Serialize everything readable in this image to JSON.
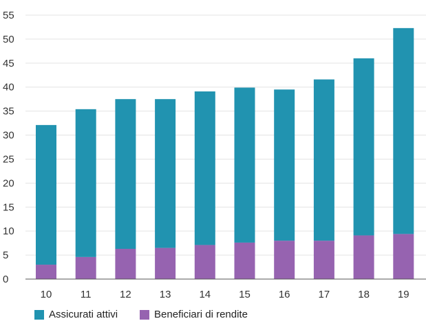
{
  "chart_data": {
    "type": "bar",
    "stacked": true,
    "categories": [
      "10",
      "11",
      "12",
      "13",
      "14",
      "15",
      "16",
      "17",
      "18",
      "19"
    ],
    "series": [
      {
        "name": "Beneficiari di rendite",
        "color": "#9663b0",
        "values": [
          3.0,
          4.6,
          6.3,
          6.5,
          7.1,
          7.6,
          8.0,
          8.0,
          9.1,
          9.4
        ]
      },
      {
        "name": "Assicurati attivi",
        "color": "#2193b0",
        "values": [
          29.1,
          30.8,
          31.2,
          31.0,
          32.0,
          32.3,
          31.5,
          33.6,
          36.9,
          42.9
        ]
      }
    ],
    "y_ticks": [
      "0",
      "5",
      "10",
      "15",
      "20",
      "25",
      "30",
      "35",
      "40",
      "45",
      "50",
      "55"
    ],
    "ylim": [
      0,
      55
    ],
    "grid": true,
    "legend_position": "bottom-left",
    "legend_order": [
      "Assicurati attivi",
      "Beneficiari di rendite"
    ],
    "colors": {
      "gridline": "#e3e3e3",
      "axis": "#555555"
    }
  }
}
